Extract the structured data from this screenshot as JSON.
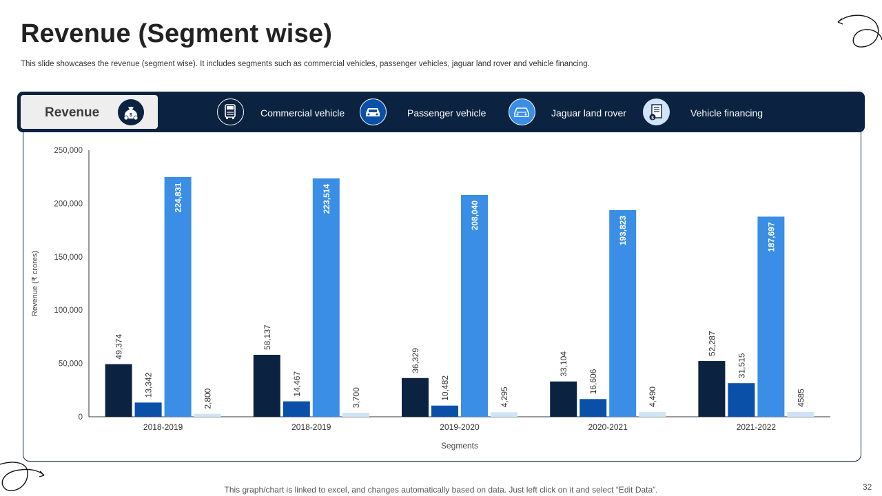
{
  "header": {
    "title": "Revenue (Segment wise)",
    "subtitle": "This slide showcases the revenue (segment wise). It includes segments such as commercial vehicles, passenger vehicles, jaguar land rover and vehicle financing."
  },
  "legend": {
    "revenue_label": "Revenue",
    "revenue_icon": "money-bag-icon",
    "items": [
      {
        "label": "Commercial vehicle",
        "icon": "truck-icon",
        "color": "#0b2240"
      },
      {
        "label": "Passenger  vehicle",
        "icon": "car-icon",
        "color": "#0a50a8"
      },
      {
        "label": "Jaguar land rover",
        "icon": "car-icon",
        "color": "#3a8ee6"
      },
      {
        "label": "Vehicle financing",
        "icon": "finance-document-icon",
        "color": "#cfe4f7"
      }
    ]
  },
  "chart_data": {
    "type": "bar",
    "categories": [
      "2018-2019",
      "2018-2019",
      "2019-2020",
      "2020-2021",
      "2021-2022"
    ],
    "series": [
      {
        "name": "Commercial vehicle",
        "color": "#0b2240",
        "values": [
          49374,
          58137,
          36329,
          33104,
          52287
        ],
        "labels": [
          "49,374",
          "58,137",
          "36,329",
          "33,104",
          "52,287"
        ]
      },
      {
        "name": "Passenger  vehicle",
        "color": "#0a50a8",
        "values": [
          13342,
          14467,
          10482,
          16606,
          31515
        ],
        "labels": [
          "13,342",
          "14,467",
          "10,482",
          "16,606",
          "31,515"
        ]
      },
      {
        "name": "Jaguar land rover",
        "color": "#3a8ee6",
        "values": [
          224831,
          223514,
          208040,
          193823,
          187697
        ],
        "labels": [
          "224,831",
          "223,514",
          "208,040",
          "193,823",
          "187,697"
        ]
      },
      {
        "name": "Vehicle financing",
        "color": "#cfe4f7",
        "values": [
          2800,
          3700,
          4295,
          4490,
          4585
        ],
        "labels": [
          "2,800",
          "3,700",
          "4,295",
          "4,490",
          "4585"
        ]
      }
    ],
    "xlabel": "Segments",
    "ylabel": "Revenue (₹ crores)",
    "ylim": [
      0,
      250000
    ],
    "yticks": [
      0,
      50000,
      100000,
      150000,
      200000,
      250000
    ],
    "ytick_labels": [
      "0",
      "50,000",
      "100,000",
      "150,000",
      "200,000",
      "250,000"
    ],
    "grid": false,
    "legend_position": "top"
  },
  "footer": {
    "note": "This graph/chart is linked to excel, and changes automatically based on data. Just left click on it and select “Edit Data”.",
    "page_number": "32"
  }
}
